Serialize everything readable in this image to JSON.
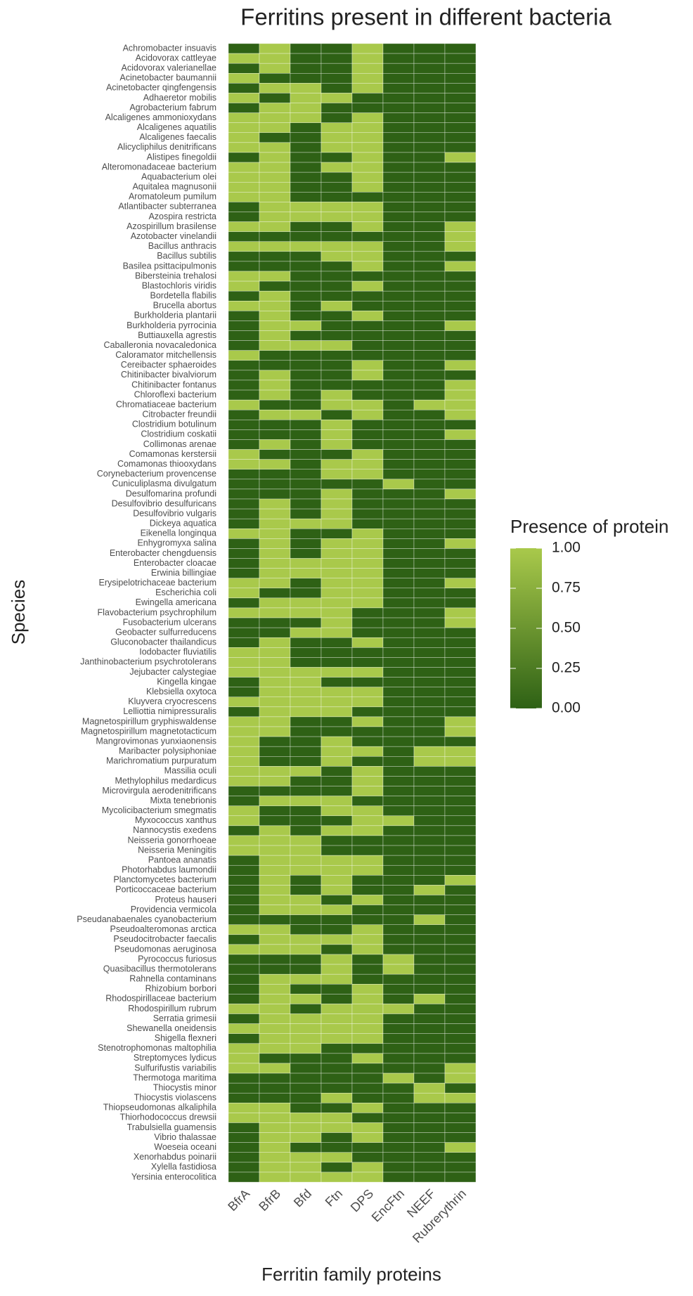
{
  "chart_data": {
    "type": "heatmap",
    "title": "Ferritins present in different bacteria",
    "x_label": "Ferritin family proteins",
    "y_label": "Species",
    "legend_title": "Presence of protein",
    "x_categories": [
      "BfrA",
      "BfrB",
      "Bfd",
      "Ftn",
      "DPS",
      "EncFtn",
      "NEEF",
      "Rubrerythrin"
    ],
    "y_categories": [
      "Achromobacter insuavis",
      "Acidovorax cattleyae",
      "Acidovorax valerianellae",
      "Acinetobacter baumannii",
      "Acinetobacter qingfengensis",
      "Adhaeretor mobilis",
      "Agrobacterium fabrum",
      "Alcaligenes ammonioxydans",
      "Alcaligenes aquatilis",
      "Alcaligenes faecalis",
      "Alicycliphilus denitrificans",
      "Alistipes finegoldii",
      "Alteromonadaceae bacterium",
      "Aquabacterium olei",
      "Aquitalea magnusonii",
      "Aromatoleum pumilum",
      "Atlantibacter subterranea",
      "Azospira restricta",
      "Azospirillum brasilense",
      "Azotobacter vinelandii",
      "Bacillus anthracis",
      "Bacillus subtilis",
      "Basilea psittacipulmonis",
      "Bibersteinia trehalosi",
      "Blastochloris viridis",
      "Bordetella flabilis",
      "Brucella abortus",
      "Burkholderia plantarii",
      "Burkholderia pyrrocinia",
      "Buttiauxella agrestis",
      "Caballeronia novacaledonica",
      "Caloramator mitchellensis",
      "Cereibacter sphaeroides",
      "Chitinibacter bivalviorum",
      "Chitinibacter fontanus",
      "Chloroflexi bacterium",
      "Chromatiaceae bacterium",
      "Citrobacter freundii",
      "Clostridium botulinum",
      "Clostridium coskatii",
      "Collimonas arenae",
      "Comamonas kerstersii",
      "Comamonas thiooxydans",
      "Corynebacterium provencense",
      "Cuniculiplasma divulgatum",
      "Desulfomarina profundi",
      "Desulfovibrio desulfuricans",
      "Desulfovibrio vulgaris",
      "Dickeya aquatica",
      "Eikenella longinqua",
      "Enhygromyxa salina",
      "Enterobacter chengduensis",
      "Enterobacter cloacae",
      "Erwinia billingiae",
      "Erysipelotrichaceae bacterium",
      "Escherichia coli",
      "Ewingella americana",
      "Flavobacterium psychrophilum",
      "Fusobacterium ulcerans",
      "Geobacter sulfurreducens",
      "Gluconobacter thailandicus",
      "Iodobacter fluviatilis",
      "Janthinobacterium psychrotolerans",
      "Jejubacter calystegiae",
      "Kingella kingae",
      "Klebsiella oxytoca",
      "Kluyvera cryocrescens",
      "Lelliottia nimipressuralis",
      "Magnetospirillum gryphiswaldense",
      "Magnetospirillum magnetotacticum",
      "Mangrovimonas yunxiaonensis",
      "Maribacter polysiphoniae",
      "Marichromatium purpuratum",
      "Massilia oculi",
      "Methylophilus medardicus",
      "Microvirgula aerodenitrificans",
      "Mixta tenebrionis",
      "Mycolicibacterium smegmatis",
      "Myxococcus xanthus",
      "Nannocystis exedens",
      "Neisseria gonorrhoeae",
      "Neisseria Meningitis",
      "Pantoea ananatis",
      "Photorhabdus laumondii",
      "Planctomycetes bacterium",
      "Porticoccaceae bacterium",
      "Proteus hauseri",
      "Providencia vermicola",
      "Pseudanabaenales cyanobacterium",
      "Pseudoalteromonas arctica",
      "Pseudocitrobacter faecalis",
      "Pseudomonas aeruginosa",
      "Pyrococcus furiosus",
      "Quasibacillus thermotolerans",
      "Rahnella contaminans",
      "Rhizobium borbori",
      "Rhodospirillaceae bacterium",
      "Rhodospirillum rubrum",
      "Serratia grimesii",
      "Shewanella oneidensis",
      "Shigella flexneri",
      "Stenotrophomonas maltophilia",
      "Streptomyces lydicus",
      "Sulfurifustis variabilis",
      "Thermotoga maritima",
      "Thiocystis minor",
      "Thiocystis violascens",
      "Thiopseudomonas alkaliphila",
      "Thiorhodococcus drewsii",
      "Trabulsiella guamensis",
      "Vibrio thalassae",
      "Woeseia oceani",
      "Xenorhabdus poinarii",
      "Xylella fastidiosa",
      "Yersinia enterocolitica"
    ],
    "values": [
      [
        0,
        1,
        0,
        0,
        1,
        0,
        0,
        0
      ],
      [
        1,
        1,
        0,
        0,
        1,
        0,
        0,
        0
      ],
      [
        0,
        1,
        0,
        0,
        1,
        0,
        0,
        0
      ],
      [
        1,
        0,
        0,
        0,
        1,
        0,
        0,
        0
      ],
      [
        0,
        1,
        1,
        0,
        1,
        0,
        0,
        0
      ],
      [
        1,
        0,
        1,
        1,
        0,
        0,
        0,
        0
      ],
      [
        0,
        1,
        1,
        0,
        0,
        0,
        0,
        0
      ],
      [
        1,
        1,
        1,
        0,
        1,
        0,
        0,
        0
      ],
      [
        1,
        1,
        0,
        1,
        1,
        0,
        0,
        0
      ],
      [
        1,
        0,
        0,
        1,
        1,
        0,
        0,
        0
      ],
      [
        1,
        1,
        0,
        1,
        1,
        0,
        0,
        0
      ],
      [
        0,
        1,
        0,
        0,
        1,
        0,
        0,
        1
      ],
      [
        1,
        1,
        0,
        1,
        1,
        0,
        0,
        0
      ],
      [
        1,
        1,
        0,
        0,
        1,
        0,
        0,
        0
      ],
      [
        1,
        1,
        0,
        0,
        1,
        0,
        0,
        0
      ],
      [
        1,
        1,
        0,
        0,
        0,
        0,
        0,
        0
      ],
      [
        0,
        1,
        1,
        1,
        1,
        0,
        0,
        0
      ],
      [
        0,
        1,
        1,
        1,
        1,
        0,
        0,
        0
      ],
      [
        1,
        1,
        0,
        0,
        1,
        0,
        0,
        1
      ],
      [
        0,
        0,
        0,
        0,
        0,
        0,
        0,
        1
      ],
      [
        1,
        1,
        1,
        1,
        1,
        0,
        0,
        1
      ],
      [
        0,
        0,
        0,
        1,
        1,
        0,
        0,
        0
      ],
      [
        0,
        0,
        0,
        0,
        1,
        0,
        0,
        1
      ],
      [
        1,
        1,
        0,
        0,
        0,
        0,
        0,
        0
      ],
      [
        1,
        0,
        0,
        0,
        1,
        0,
        0,
        0
      ],
      [
        0,
        1,
        0,
        0,
        0,
        0,
        0,
        0
      ],
      [
        1,
        1,
        0,
        1,
        0,
        0,
        0,
        0
      ],
      [
        0,
        1,
        0,
        0,
        1,
        0,
        0,
        0
      ],
      [
        0,
        1,
        1,
        0,
        0,
        0,
        0,
        1
      ],
      [
        0,
        1,
        0,
        0,
        0,
        0,
        0,
        0
      ],
      [
        0,
        1,
        1,
        1,
        0,
        0,
        0,
        0
      ],
      [
        1,
        0,
        0,
        0,
        0,
        0,
        0,
        0
      ],
      [
        0,
        0,
        0,
        0,
        1,
        0,
        0,
        1
      ],
      [
        0,
        1,
        0,
        0,
        1,
        0,
        0,
        0
      ],
      [
        0,
        1,
        0,
        0,
        0,
        0,
        0,
        1
      ],
      [
        0,
        1,
        0,
        1,
        0,
        0,
        0,
        1
      ],
      [
        1,
        0,
        0,
        1,
        1,
        0,
        1,
        1
      ],
      [
        0,
        1,
        1,
        0,
        1,
        0,
        0,
        1
      ],
      [
        0,
        0,
        0,
        1,
        0,
        0,
        0,
        0
      ],
      [
        0,
        0,
        0,
        1,
        0,
        0,
        0,
        1
      ],
      [
        0,
        1,
        0,
        1,
        0,
        0,
        0,
        0
      ],
      [
        1,
        0,
        0,
        0,
        1,
        0,
        0,
        0
      ],
      [
        1,
        1,
        0,
        1,
        1,
        0,
        0,
        0
      ],
      [
        0,
        0,
        0,
        1,
        1,
        0,
        0,
        0
      ],
      [
        0,
        0,
        0,
        0,
        0,
        1,
        0,
        0
      ],
      [
        0,
        0,
        0,
        1,
        0,
        0,
        0,
        1
      ],
      [
        0,
        1,
        0,
        1,
        0,
        0,
        0,
        0
      ],
      [
        0,
        1,
        0,
        1,
        0,
        0,
        0,
        0
      ],
      [
        0,
        1,
        1,
        1,
        0,
        0,
        0,
        0
      ],
      [
        1,
        1,
        0,
        0,
        1,
        0,
        0,
        0
      ],
      [
        0,
        1,
        0,
        1,
        1,
        0,
        0,
        1
      ],
      [
        0,
        1,
        0,
        1,
        1,
        0,
        0,
        0
      ],
      [
        0,
        1,
        1,
        1,
        1,
        0,
        0,
        0
      ],
      [
        0,
        1,
        1,
        1,
        1,
        0,
        0,
        0
      ],
      [
        1,
        1,
        0,
        1,
        1,
        0,
        0,
        1
      ],
      [
        1,
        0,
        0,
        1,
        1,
        0,
        0,
        0
      ],
      [
        0,
        1,
        1,
        1,
        1,
        0,
        0,
        0
      ],
      [
        1,
        1,
        1,
        1,
        0,
        0,
        0,
        1
      ],
      [
        0,
        0,
        0,
        1,
        0,
        0,
        0,
        1
      ],
      [
        0,
        0,
        1,
        1,
        0,
        0,
        0,
        0
      ],
      [
        0,
        1,
        0,
        0,
        1,
        0,
        0,
        0
      ],
      [
        1,
        1,
        0,
        0,
        0,
        0,
        0,
        0
      ],
      [
        1,
        1,
        0,
        0,
        0,
        0,
        0,
        0
      ],
      [
        1,
        1,
        1,
        1,
        1,
        0,
        0,
        0
      ],
      [
        0,
        1,
        1,
        0,
        0,
        0,
        0,
        0
      ],
      [
        0,
        1,
        1,
        1,
        1,
        0,
        0,
        0
      ],
      [
        1,
        1,
        1,
        1,
        1,
        0,
        0,
        0
      ],
      [
        0,
        1,
        1,
        1,
        0,
        0,
        0,
        0
      ],
      [
        1,
        1,
        0,
        0,
        1,
        0,
        0,
        1
      ],
      [
        1,
        1,
        0,
        0,
        0,
        0,
        0,
        1
      ],
      [
        1,
        0,
        0,
        1,
        0,
        0,
        0,
        0
      ],
      [
        1,
        0,
        0,
        1,
        1,
        0,
        1,
        1
      ],
      [
        1,
        0,
        0,
        1,
        0,
        0,
        1,
        1
      ],
      [
        1,
        1,
        1,
        0,
        1,
        0,
        0,
        0
      ],
      [
        1,
        1,
        0,
        0,
        1,
        0,
        0,
        0
      ],
      [
        0,
        0,
        0,
        0,
        1,
        0,
        0,
        0
      ],
      [
        0,
        1,
        1,
        1,
        0,
        0,
        0,
        0
      ],
      [
        1,
        0,
        0,
        1,
        1,
        0,
        0,
        0
      ],
      [
        1,
        0,
        0,
        0,
        1,
        1,
        0,
        0
      ],
      [
        0,
        1,
        0,
        1,
        1,
        0,
        0,
        0
      ],
      [
        1,
        1,
        1,
        0,
        0,
        0,
        0,
        0
      ],
      [
        1,
        1,
        1,
        0,
        0,
        0,
        0,
        0
      ],
      [
        0,
        1,
        1,
        1,
        1,
        0,
        0,
        0
      ],
      [
        0,
        1,
        1,
        1,
        1,
        0,
        0,
        0
      ],
      [
        0,
        1,
        0,
        1,
        0,
        0,
        0,
        1
      ],
      [
        0,
        1,
        0,
        1,
        0,
        0,
        1,
        0
      ],
      [
        0,
        1,
        1,
        0,
        1,
        0,
        0,
        0
      ],
      [
        0,
        1,
        1,
        1,
        0,
        0,
        0,
        0
      ],
      [
        0,
        0,
        0,
        0,
        0,
        0,
        1,
        0
      ],
      [
        1,
        1,
        0,
        0,
        1,
        0,
        0,
        0
      ],
      [
        0,
        1,
        1,
        1,
        1,
        0,
        0,
        0
      ],
      [
        1,
        1,
        1,
        0,
        1,
        0,
        0,
        0
      ],
      [
        0,
        0,
        0,
        1,
        0,
        1,
        0,
        0
      ],
      [
        0,
        0,
        0,
        1,
        0,
        1,
        0,
        0
      ],
      [
        0,
        1,
        1,
        1,
        0,
        0,
        0,
        0
      ],
      [
        0,
        1,
        0,
        0,
        1,
        0,
        0,
        0
      ],
      [
        0,
        1,
        1,
        0,
        1,
        0,
        1,
        0
      ],
      [
        1,
        1,
        0,
        1,
        1,
        1,
        0,
        0
      ],
      [
        0,
        1,
        1,
        1,
        1,
        0,
        0,
        0
      ],
      [
        1,
        1,
        1,
        1,
        1,
        0,
        0,
        0
      ],
      [
        0,
        1,
        1,
        1,
        1,
        0,
        0,
        0
      ],
      [
        1,
        1,
        1,
        0,
        0,
        0,
        0,
        0
      ],
      [
        1,
        0,
        0,
        0,
        1,
        0,
        0,
        0
      ],
      [
        1,
        1,
        0,
        0,
        0,
        0,
        0,
        1
      ],
      [
        0,
        0,
        0,
        0,
        0,
        1,
        0,
        1
      ],
      [
        0,
        0,
        0,
        0,
        0,
        0,
        1,
        0
      ],
      [
        0,
        0,
        0,
        1,
        0,
        0,
        1,
        1
      ],
      [
        1,
        1,
        0,
        0,
        1,
        0,
        0,
        0
      ],
      [
        1,
        1,
        1,
        1,
        0,
        0,
        0,
        0
      ],
      [
        0,
        1,
        1,
        1,
        1,
        0,
        0,
        0
      ],
      [
        0,
        1,
        1,
        0,
        1,
        0,
        0,
        0
      ],
      [
        0,
        1,
        0,
        0,
        0,
        0,
        0,
        1
      ],
      [
        0,
        1,
        1,
        1,
        0,
        0,
        0,
        0
      ],
      [
        0,
        1,
        1,
        0,
        1,
        0,
        0,
        0
      ],
      [
        0,
        1,
        1,
        1,
        1,
        0,
        0,
        0
      ]
    ],
    "clim": [
      0,
      1
    ],
    "colorbar_ticks": [
      {
        "value": 1,
        "label": "1.00"
      },
      {
        "value": 0.75,
        "label": "0.75"
      },
      {
        "value": 0.5,
        "label": "0.50"
      },
      {
        "value": 0.25,
        "label": "0.25"
      },
      {
        "value": 0,
        "label": "0.00"
      }
    ],
    "color_low": "#2e6115",
    "color_high": "#a9c94b"
  }
}
